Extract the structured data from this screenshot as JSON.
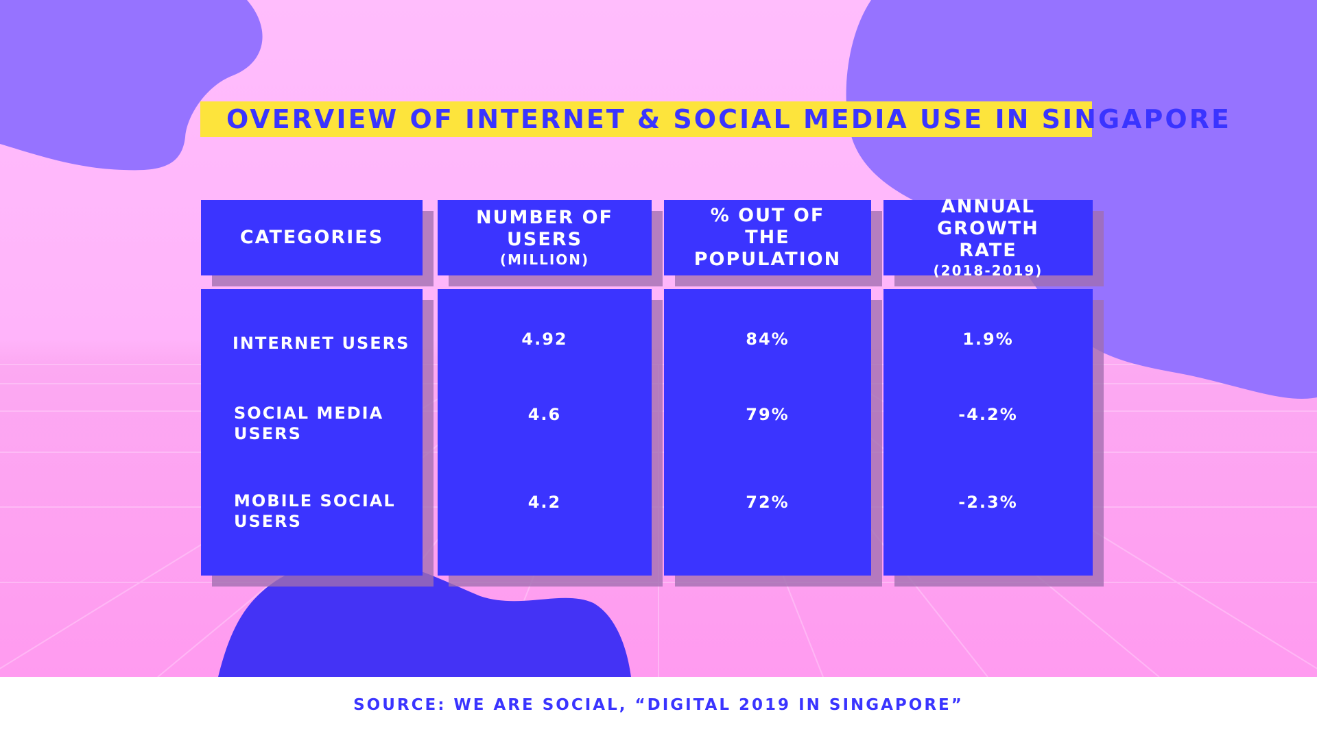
{
  "title": "Overview of Internet & Social Media Use in Singapore",
  "columns": {
    "categories": {
      "main": "CATEGORIES",
      "sub": ""
    },
    "users": {
      "main": "NUMBER OF USERS",
      "sub": "(MILLION)"
    },
    "percent": {
      "main": "% OUT OF THE POPULATION",
      "sub": ""
    },
    "growth": {
      "main": "ANNUAL GROWTH RATE",
      "sub": "(2018-2019)"
    }
  },
  "rows": [
    {
      "category": "INTERNET USERS",
      "users": "4.92",
      "percent": "84%",
      "growth": "1.9%"
    },
    {
      "category": "SOCIAL MEDIA\nUSERS",
      "users": "4.6",
      "percent": "79%",
      "growth": "-4.2%"
    },
    {
      "category": "MOBILE SOCIAL\nUSERS",
      "users": "4.2",
      "percent": "72%",
      "growth": "-2.3%"
    }
  ],
  "source": "SOURCE: WE ARE SOCIAL, “DIGITAL 2019 IN SINGAPORE”",
  "colors": {
    "background_pink": "#ffb6f9",
    "blob_purple": "#9673ff",
    "cell_blue": "#3b34ff",
    "title_highlight": "#fde43c",
    "text_blue": "#3a34ff",
    "white": "#ffffff"
  }
}
